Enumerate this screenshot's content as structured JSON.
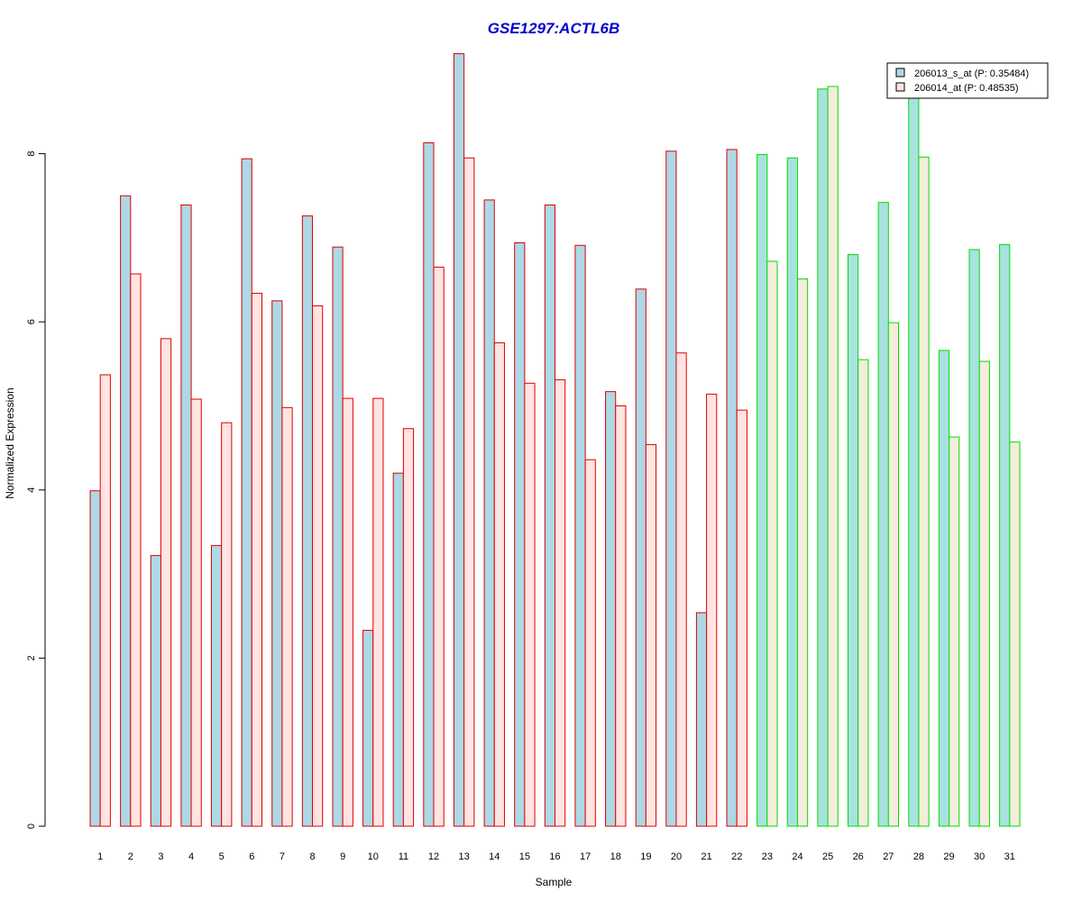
{
  "chart_data": {
    "type": "bar",
    "title": "GSE1297:ACTL6B",
    "xlabel": "Sample",
    "ylabel": "Normalized Expression",
    "ylim": [
      0,
      9.2
    ],
    "yticks": [
      "0",
      "2",
      "4",
      "6",
      "8"
    ],
    "grid": false,
    "legend_position": "top-right",
    "categories": [
      "1",
      "2",
      "3",
      "4",
      "5",
      "6",
      "7",
      "8",
      "9",
      "10",
      "11",
      "12",
      "13",
      "14",
      "15",
      "16",
      "17",
      "18",
      "19",
      "20",
      "21",
      "22",
      "23",
      "24",
      "25",
      "26",
      "27",
      "28",
      "29",
      "30",
      "31"
    ],
    "groups": [
      {
        "categories": [
          "1",
          "2",
          "3",
          "4",
          "5",
          "6",
          "7",
          "8",
          "9",
          "10",
          "11",
          "12",
          "13",
          "14",
          "15",
          "16",
          "17",
          "18",
          "19",
          "20",
          "21",
          "22"
        ],
        "border_color": "#e00000"
      },
      {
        "categories": [
          "23",
          "24",
          "25",
          "26",
          "27",
          "28",
          "29",
          "30",
          "31"
        ],
        "border_color": "#00dd00"
      }
    ],
    "series": [
      {
        "name": "206013_s_at (P: 0.35484)",
        "fill_group1": "#add8e6",
        "fill_group2": "#a8e2e0",
        "values": [
          3.99,
          7.5,
          3.22,
          7.39,
          3.34,
          7.94,
          6.25,
          7.26,
          6.89,
          2.33,
          4.2,
          8.13,
          9.19,
          7.45,
          6.94,
          7.39,
          6.91,
          5.17,
          6.39,
          8.03,
          2.54,
          8.05,
          7.99,
          7.95,
          8.77,
          6.8,
          7.42,
          8.72,
          5.66,
          6.86,
          6.92
        ]
      },
      {
        "name": "206014_at (P: 0.48535)",
        "fill_group1": "#ffe4e1",
        "fill_group2": "#f5ecdc",
        "values": [
          5.37,
          6.57,
          5.8,
          5.08,
          4.8,
          6.34,
          4.98,
          6.19,
          5.09,
          5.09,
          4.73,
          6.65,
          7.95,
          5.75,
          5.27,
          5.31,
          4.36,
          5.0,
          4.54,
          5.63,
          5.14,
          4.95,
          6.72,
          6.51,
          8.8,
          5.55,
          5.99,
          7.96,
          4.63,
          5.53,
          4.57
        ]
      }
    ]
  }
}
